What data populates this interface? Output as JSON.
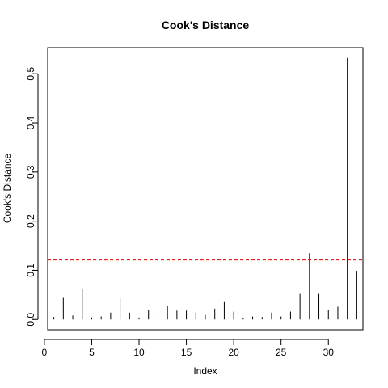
{
  "chart_data": {
    "type": "bar",
    "title": "Cook's Distance",
    "xlabel": "Index",
    "ylabel": "Cook's Distance",
    "xlim": [
      0.35,
      33.65
    ],
    "ylim": [
      -0.021,
      0.553
    ],
    "xticks": [
      0,
      5,
      10,
      15,
      20,
      25,
      30
    ],
    "xtick_labels": [
      "0",
      "5",
      "10",
      "15",
      "20",
      "25",
      "30"
    ],
    "yticks": [
      0.0,
      0.1,
      0.2,
      0.3,
      0.4,
      0.5
    ],
    "ytick_labels": [
      "0.0",
      "0.1",
      "0.2",
      "0.3",
      "0.4",
      "0.5"
    ],
    "x": [
      1,
      2,
      3,
      4,
      5,
      6,
      7,
      8,
      9,
      10,
      11,
      12,
      13,
      14,
      15,
      16,
      17,
      18,
      19,
      20,
      21,
      22,
      23,
      24,
      25,
      26,
      27,
      28,
      29,
      30,
      31,
      32,
      33
    ],
    "values": [
      0.005,
      0.044,
      0.008,
      0.062,
      0.004,
      0.006,
      0.014,
      0.043,
      0.014,
      0.004,
      0.019,
      0.002,
      0.028,
      0.018,
      0.018,
      0.014,
      0.009,
      0.022,
      0.037,
      0.016,
      0.002,
      0.006,
      0.005,
      0.014,
      0.006,
      0.016,
      0.052,
      0.135,
      0.052,
      0.019,
      0.026,
      0.532,
      0.099
    ],
    "threshold": 0.121,
    "threshold_color": "#dd0000",
    "bar_color": "#000000",
    "grid": false,
    "legend": "none"
  }
}
